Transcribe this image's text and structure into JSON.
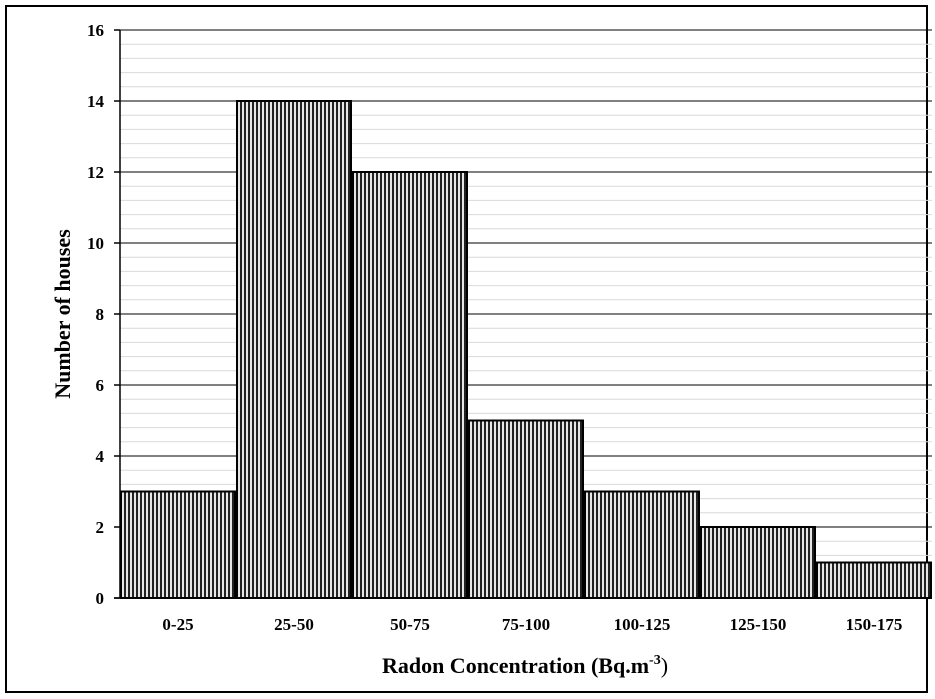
{
  "chart_data": {
    "type": "bar",
    "categories": [
      "0-25",
      "25-50",
      "50-75",
      "75-100",
      "100-125",
      "125-150",
      "150-175"
    ],
    "values": [
      3,
      14,
      12,
      5,
      3,
      2,
      1
    ],
    "xlabel": {
      "main": "Radon Concentration (Bq.m",
      "superscript": "-3",
      "closing": ")"
    },
    "ylabel": "Number of houses",
    "ylim": [
      0,
      16
    ],
    "yticks": [
      0,
      2,
      4,
      6,
      8,
      10,
      12,
      14,
      16
    ],
    "grid": {
      "major": true,
      "minor": true
    },
    "colors": {
      "bar_stripe_dark": "#222222",
      "bar_stripe_light": "#e6e6e6",
      "bar_outline": "#000000",
      "major_grid": "#000000",
      "minor_grid": "#d9d9d9"
    }
  }
}
